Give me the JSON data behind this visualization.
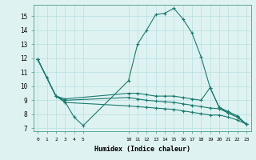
{
  "xlabel": "Humidex (Indice chaleur)",
  "bg_color": "#dff2f2",
  "line_color": "#1a7a6e",
  "grid_color": "#b8dede",
  "xlim": [
    -0.5,
    23.5
  ],
  "ylim": [
    6.8,
    15.8
  ],
  "yticks": [
    7,
    8,
    9,
    10,
    11,
    12,
    13,
    14,
    15
  ],
  "xticks": [
    0,
    1,
    2,
    3,
    4,
    5,
    10,
    11,
    12,
    13,
    14,
    15,
    16,
    17,
    18,
    19,
    20,
    21,
    22,
    23
  ],
  "lines": [
    {
      "x": [
        0,
        1,
        2,
        3,
        4,
        5,
        10,
        11,
        12,
        13,
        14,
        15,
        16,
        17,
        18,
        19,
        20,
        21,
        22,
        23
      ],
      "y": [
        11.9,
        10.6,
        9.3,
        8.9,
        7.8,
        7.2,
        10.4,
        13.0,
        14.0,
        15.1,
        15.2,
        15.55,
        14.8,
        13.8,
        12.1,
        9.9,
        8.5,
        8.1,
        7.8,
        7.3
      ]
    },
    {
      "x": [
        0,
        2,
        3,
        10,
        11,
        12,
        13,
        14,
        15,
        16,
        17,
        18,
        19,
        20,
        21,
        22,
        23
      ],
      "y": [
        11.9,
        9.3,
        9.1,
        9.5,
        9.5,
        9.4,
        9.3,
        9.3,
        9.3,
        9.2,
        9.1,
        9.0,
        9.9,
        8.5,
        8.2,
        7.9,
        7.3
      ]
    },
    {
      "x": [
        0,
        2,
        3,
        10,
        11,
        12,
        13,
        14,
        15,
        16,
        17,
        18,
        19,
        20,
        21,
        22,
        23
      ],
      "y": [
        11.9,
        9.3,
        9.0,
        9.2,
        9.1,
        9.0,
        8.95,
        8.9,
        8.85,
        8.75,
        8.65,
        8.55,
        8.45,
        8.4,
        8.1,
        7.8,
        7.3
      ]
    },
    {
      "x": [
        0,
        2,
        3,
        10,
        11,
        12,
        13,
        14,
        15,
        16,
        17,
        18,
        19,
        20,
        21,
        22,
        23
      ],
      "y": [
        11.9,
        9.3,
        8.85,
        8.6,
        8.55,
        8.5,
        8.45,
        8.4,
        8.35,
        8.25,
        8.15,
        8.05,
        7.95,
        7.95,
        7.8,
        7.6,
        7.3
      ]
    }
  ]
}
